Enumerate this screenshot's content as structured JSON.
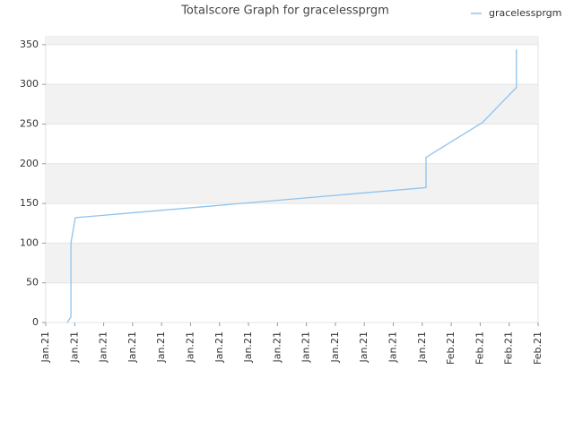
{
  "chart_data": {
    "type": "line",
    "title": "Totalscore Graph for gracelessprgm",
    "x": [
      0.74,
      0.87,
      0.87,
      1.02,
      13.13,
      13.13,
      15.08,
      16.25,
      16.25
    ],
    "series": [
      {
        "name": "gracelessprgm",
        "color": "#8ec3ee",
        "values": [
          0,
          7,
          100,
          132,
          170,
          208,
          252,
          296,
          344
        ]
      }
    ],
    "xlim": [
      0,
      17
    ],
    "xticks": [
      {
        "value": 0,
        "label": "Jan.21"
      },
      {
        "value": 1,
        "label": "Jan.21"
      },
      {
        "value": 2,
        "label": "Jan.21"
      },
      {
        "value": 3,
        "label": "Jan.21"
      },
      {
        "value": 4,
        "label": "Jan.21"
      },
      {
        "value": 5,
        "label": "Jan.21"
      },
      {
        "value": 6,
        "label": "Jan.21"
      },
      {
        "value": 7,
        "label": "Jan.21"
      },
      {
        "value": 8,
        "label": "Jan.21"
      },
      {
        "value": 9,
        "label": "Jan.21"
      },
      {
        "value": 10,
        "label": "Jan.21"
      },
      {
        "value": 11,
        "label": "Jan.21"
      },
      {
        "value": 12,
        "label": "Jan.21"
      },
      {
        "value": 13,
        "label": "Jan.21"
      },
      {
        "value": 14,
        "label": "Feb.21"
      },
      {
        "value": 15,
        "label": "Feb.21"
      },
      {
        "value": 16,
        "label": "Feb.21"
      },
      {
        "value": 17,
        "label": "Feb.21"
      }
    ],
    "ylim": [
      0,
      360
    ],
    "yticks": [
      0,
      50,
      100,
      150,
      200,
      250,
      300,
      350
    ],
    "grid": true,
    "legend": "top-right"
  }
}
